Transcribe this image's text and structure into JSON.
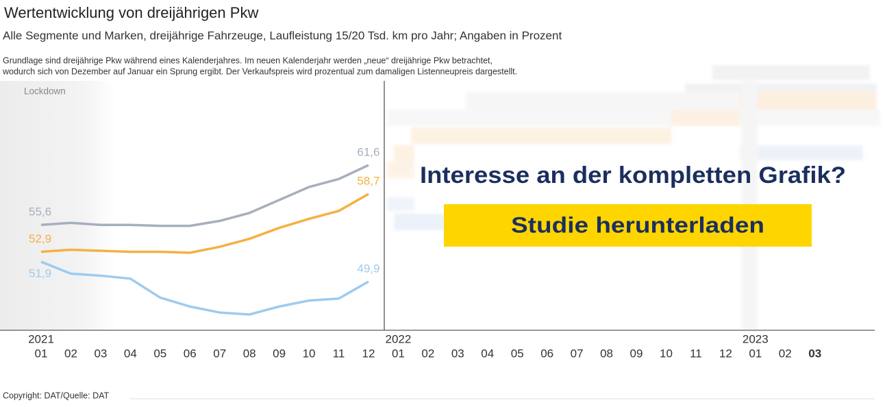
{
  "title": "Wertentwicklung von dreijährigen Pkw",
  "subtitle": "Alle Segmente und Marken, dreijährige Fahrzeuge, Laufleistung 15/20 Tsd. km pro Jahr; Angaben in Prozent",
  "note": [
    "Grundlage sind dreijährige Pkw während eines Kalenderjahres. Im neuen Kalenderjahr werden „neue“ dreijährige Pkw betrachtet,",
    "wodurch sich von Dezember auf Januar ein Sprung ergibt. Der Verkaufspreis wird prozentual zum damaligen Listenneupreis dargestellt."
  ],
  "chart_data": {
    "type": "line",
    "annotation": "Lockdown",
    "categories": [
      "01",
      "02",
      "03",
      "04",
      "05",
      "06",
      "07",
      "08",
      "09",
      "10",
      "11",
      "12",
      "01",
      "02",
      "03",
      "04",
      "05",
      "06",
      "07",
      "08",
      "09",
      "10",
      "11",
      "12",
      "01",
      "02",
      "03"
    ],
    "year_labels": [
      "2021",
      null,
      null,
      null,
      null,
      null,
      null,
      null,
      null,
      null,
      null,
      null,
      "2022",
      null,
      null,
      null,
      null,
      null,
      null,
      null,
      null,
      null,
      null,
      null,
      "2023",
      null,
      null
    ],
    "series": [
      {
        "color": "#a7afbd",
        "values": [
          55.6,
          55.8,
          55.6,
          55.6,
          55.5,
          55.5,
          56.0,
          56.8,
          58.1,
          59.4,
          60.2,
          61.6,
          null,
          null,
          null,
          null,
          null,
          null,
          null,
          null,
          null,
          null,
          null,
          null,
          null,
          null,
          null
        ],
        "value_labels": [
          "55,6",
          null,
          null,
          null,
          null,
          null,
          null,
          null,
          null,
          null,
          null,
          "61,6",
          null,
          null,
          null,
          null,
          null,
          null,
          null,
          null,
          null,
          null,
          null,
          null,
          null,
          null,
          null
        ]
      },
      {
        "color": "#f5b042",
        "values": [
          52.9,
          53.1,
          53.0,
          52.9,
          52.9,
          52.8,
          53.4,
          54.2,
          55.3,
          56.2,
          57.0,
          58.7,
          null,
          null,
          null,
          null,
          null,
          null,
          null,
          null,
          null,
          null,
          null,
          null,
          null,
          null,
          null
        ],
        "value_labels": [
          "52,9",
          null,
          null,
          null,
          null,
          null,
          null,
          null,
          null,
          null,
          null,
          "58,7",
          null,
          null,
          null,
          null,
          null,
          null,
          null,
          null,
          null,
          null,
          null,
          null,
          null,
          null,
          null
        ]
      },
      {
        "color": "#9dcbef",
        "values": [
          51.9,
          50.7,
          50.5,
          50.2,
          48.3,
          47.4,
          46.8,
          46.6,
          47.4,
          48.0,
          48.2,
          49.9,
          null,
          null,
          null,
          null,
          null,
          null,
          null,
          null,
          null,
          null,
          null,
          null,
          null,
          null,
          null
        ],
        "value_labels": [
          "51,9",
          null,
          null,
          null,
          null,
          null,
          null,
          null,
          null,
          null,
          null,
          "49,9",
          null,
          null,
          null,
          null,
          null,
          null,
          null,
          null,
          null,
          null,
          null,
          null,
          null,
          null,
          null
        ]
      }
    ]
  },
  "overlay": {
    "question": "Interesse an der kompletten Grafik?",
    "button": "Studie herunterladen"
  },
  "footer": {
    "copyright": "Copyright: DAT/Quelle: DAT"
  }
}
